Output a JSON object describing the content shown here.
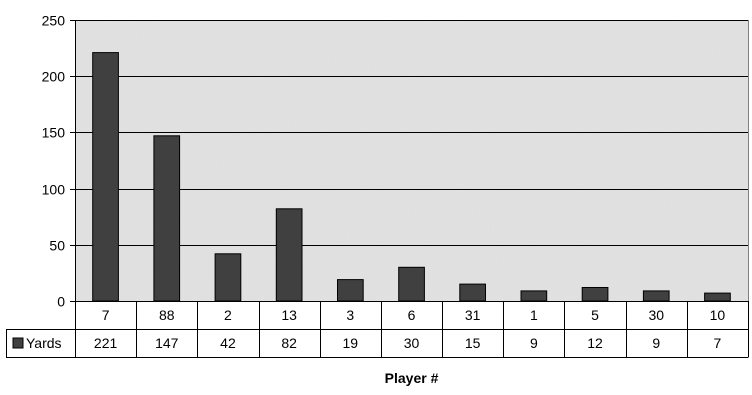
{
  "chart_data": {
    "type": "bar",
    "title": "",
    "xlabel": "Player #",
    "ylabel": "",
    "categories": [
      "7",
      "88",
      "2",
      "13",
      "3",
      "6",
      "31",
      "1",
      "5",
      "30",
      "10"
    ],
    "series": [
      {
        "name": "Yards",
        "values": [
          221,
          147,
          42,
          82,
          19,
          30,
          15,
          9,
          12,
          9,
          7
        ]
      }
    ],
    "ylim": [
      0,
      250
    ],
    "yticks": [
      0,
      50,
      100,
      150,
      200,
      250
    ],
    "grid": true,
    "legend": "data-table",
    "data_table": true
  },
  "colors": {
    "bar": "#404040",
    "plot_background": "#e4e4e4",
    "gridline": "#000000",
    "legend_key": "#404040"
  }
}
